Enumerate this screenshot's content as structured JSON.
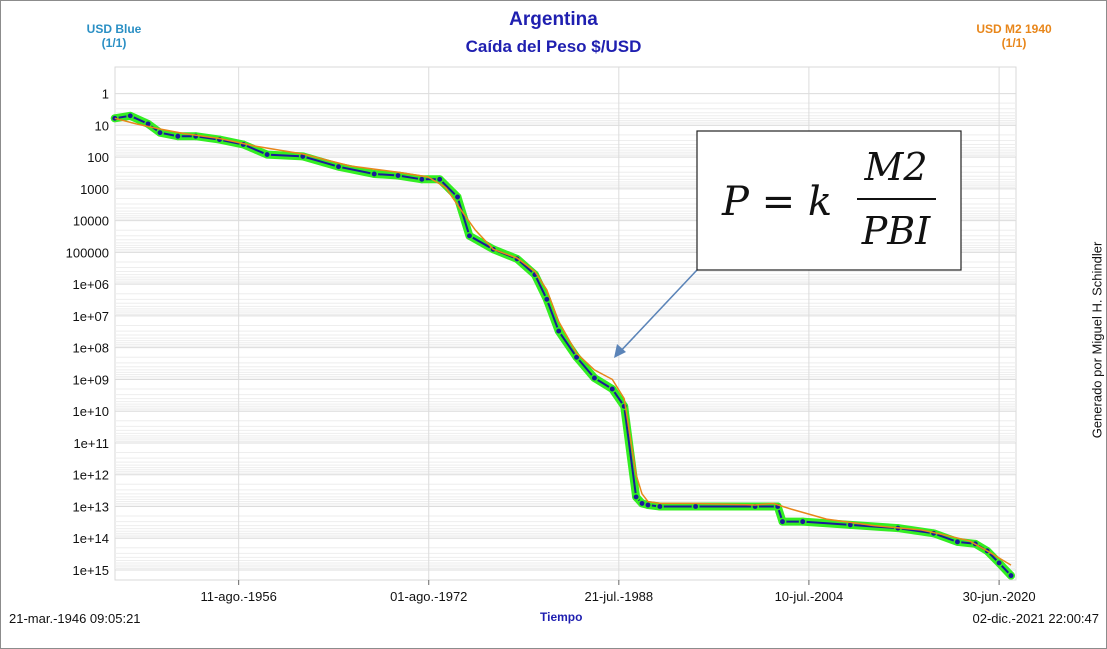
{
  "header": {
    "title": "Argentina",
    "subtitle": "Caída del Peso $/USD",
    "legend_left": {
      "name": "USD Blue",
      "page": "(1/1)",
      "color": "#2a8fc4"
    },
    "legend_right": {
      "name": "USD M2 1940",
      "page": "(1/1)",
      "color": "#e8861a"
    }
  },
  "footer": {
    "start_time": "21-mar.-1946 09:05:21",
    "end_time": "02-dic.-2021 22:00:47",
    "x_axis_label": "Tiempo",
    "credit": "Generado por Miguel H. Schindler"
  },
  "chart_data": {
    "type": "line",
    "y_scale": "log",
    "y_inverted": true,
    "xlim": [
      1946.22,
      2021.92
    ],
    "ylim": [
      0.3,
      1000000000000000.0
    ],
    "x_ticks": [
      {
        "x": 1956.61,
        "label": "11-ago.-1956"
      },
      {
        "x": 1972.58,
        "label": "01-ago.-1972"
      },
      {
        "x": 1988.55,
        "label": "21-jul.-1988"
      },
      {
        "x": 2004.52,
        "label": "10-jul.-2004"
      },
      {
        "x": 2020.5,
        "label": "30-jun.-2020"
      }
    ],
    "y_ticks": [
      {
        "exp": 0,
        "label": "1"
      },
      {
        "exp": 1,
        "label": "10"
      },
      {
        "exp": 2,
        "label": "100"
      },
      {
        "exp": 3,
        "label": "1000"
      },
      {
        "exp": 4,
        "label": "10000"
      },
      {
        "exp": 5,
        "label": "100000"
      },
      {
        "exp": 6,
        "label": "1e+06"
      },
      {
        "exp": 7,
        "label": "1e+07"
      },
      {
        "exp": 8,
        "label": "1e+08"
      },
      {
        "exp": 9,
        "label": "1e+09"
      },
      {
        "exp": 10,
        "label": "1e+10"
      },
      {
        "exp": 11,
        "label": "1e+11"
      },
      {
        "exp": 12,
        "label": "1e+12"
      },
      {
        "exp": 13,
        "label": "1e+13"
      },
      {
        "exp": 14,
        "label": "1e+14"
      },
      {
        "exp": 15,
        "label": "1e+15"
      }
    ],
    "grid": true,
    "series": [
      {
        "name": "USD Blue",
        "color": "#1a1a9a",
        "highlight_color": "#33ee22",
        "x": [
          1946.2,
          1947.5,
          1949.0,
          1950.0,
          1951.5,
          1953.0,
          1955.0,
          1957.0,
          1959.0,
          1962.0,
          1965.0,
          1968.0,
          1970.0,
          1972.0,
          1973.5,
          1975.0,
          1976.0,
          1978.0,
          1980.0,
          1981.5,
          1982.5,
          1983.5,
          1985.0,
          1986.5,
          1988.0,
          1989.0,
          1990.0,
          1990.5,
          1991.0,
          1992.0,
          1995.0,
          2000.0,
          2001.9,
          2002.3,
          2004.0,
          2008.0,
          2012.0,
          2015.0,
          2017.0,
          2018.5,
          2019.5,
          2020.5,
          2021.5
        ],
        "y": [
          6,
          5,
          9,
          17,
          22,
          22,
          28,
          40,
          83,
          95,
          200,
          340,
          380,
          500,
          500,
          1800,
          30000,
          80000,
          160000,
          500000,
          3000000,
          30000000,
          200000000,
          900000000,
          2000000000,
          7000000000,
          5000000000000,
          8000000000000,
          9000000000000,
          10000000000000,
          10000000000000,
          10000000000000,
          10000000000000,
          30000000000000,
          30000000000000,
          38000000000000,
          48000000000000,
          70000000000000,
          130000000000000,
          150000000000000,
          250000000000000,
          600000000000000,
          1500000000000000
        ]
      },
      {
        "name": "USD M2 1940",
        "color": "#e8861a",
        "x": [
          1946.2,
          1948.0,
          1950.0,
          1952.0,
          1955.0,
          1958.0,
          1962.0,
          1966.0,
          1970.0,
          1972.5,
          1974.0,
          1975.5,
          1976.5,
          1978.0,
          1980.0,
          1981.5,
          1982.5,
          1983.5,
          1985.0,
          1986.5,
          1988.0,
          1989.0,
          1990.0,
          1990.5,
          1991.0,
          1992.0,
          1995.0,
          2000.0,
          2001.5,
          2003.0,
          2006.0,
          2010.0,
          2014.0,
          2016.0,
          2018.0,
          2019.5,
          2021.5
        ],
        "y": [
          6,
          9,
          13,
          18,
          26,
          45,
          80,
          190,
          300,
          420,
          900,
          6000,
          20000,
          80000,
          150000,
          400000,
          1500000,
          15000000,
          150000000,
          500000000,
          1000000000,
          4000000000,
          1000000000000,
          4000000000000,
          7000000000000,
          8000000000000,
          8000000000000,
          9000000000000,
          8000000000000,
          12000000000000,
          25000000000000,
          40000000000000,
          55000000000000,
          80000000000000,
          120000000000000,
          250000000000000,
          700000000000000
        ]
      }
    ]
  },
  "formula": {
    "lhs": "P = k",
    "numerator": "M2",
    "denominator": "PBI"
  }
}
